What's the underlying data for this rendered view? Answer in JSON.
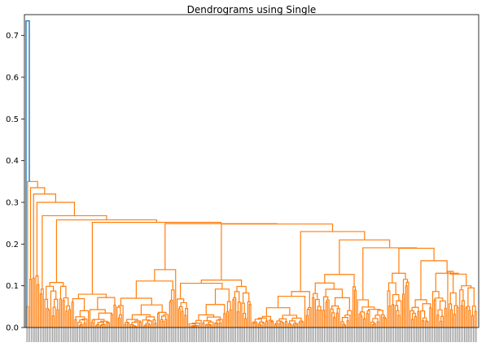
{
  "chart_data": {
    "type": "dendrogram",
    "title": "Dendrograms using Single",
    "xlabel": "",
    "ylabel": "",
    "ylim": [
      0,
      0.75
    ],
    "yticks": [
      "0.0",
      "0.1",
      "0.2",
      "0.3",
      "0.4",
      "0.5",
      "0.6",
      "0.7"
    ],
    "ytick_values": [
      0,
      0.1,
      0.2,
      0.3,
      0.4,
      0.5,
      0.6,
      0.7
    ],
    "leaf_count": 300,
    "grid": false,
    "colors": {
      "cluster": "#ff7f0e",
      "root": "#1f77b4"
    },
    "root_merge": {
      "height": 0.735
    },
    "top_merges": [
      0.35,
      0.335,
      0.32,
      0.3,
      0.268,
      0.258,
      0.252,
      0.249,
      0.248,
      0.23,
      0.21,
      0.191,
      0.19,
      0.16,
      0.13,
      0.128,
      0.1,
      0.095,
      0.09
    ]
  }
}
